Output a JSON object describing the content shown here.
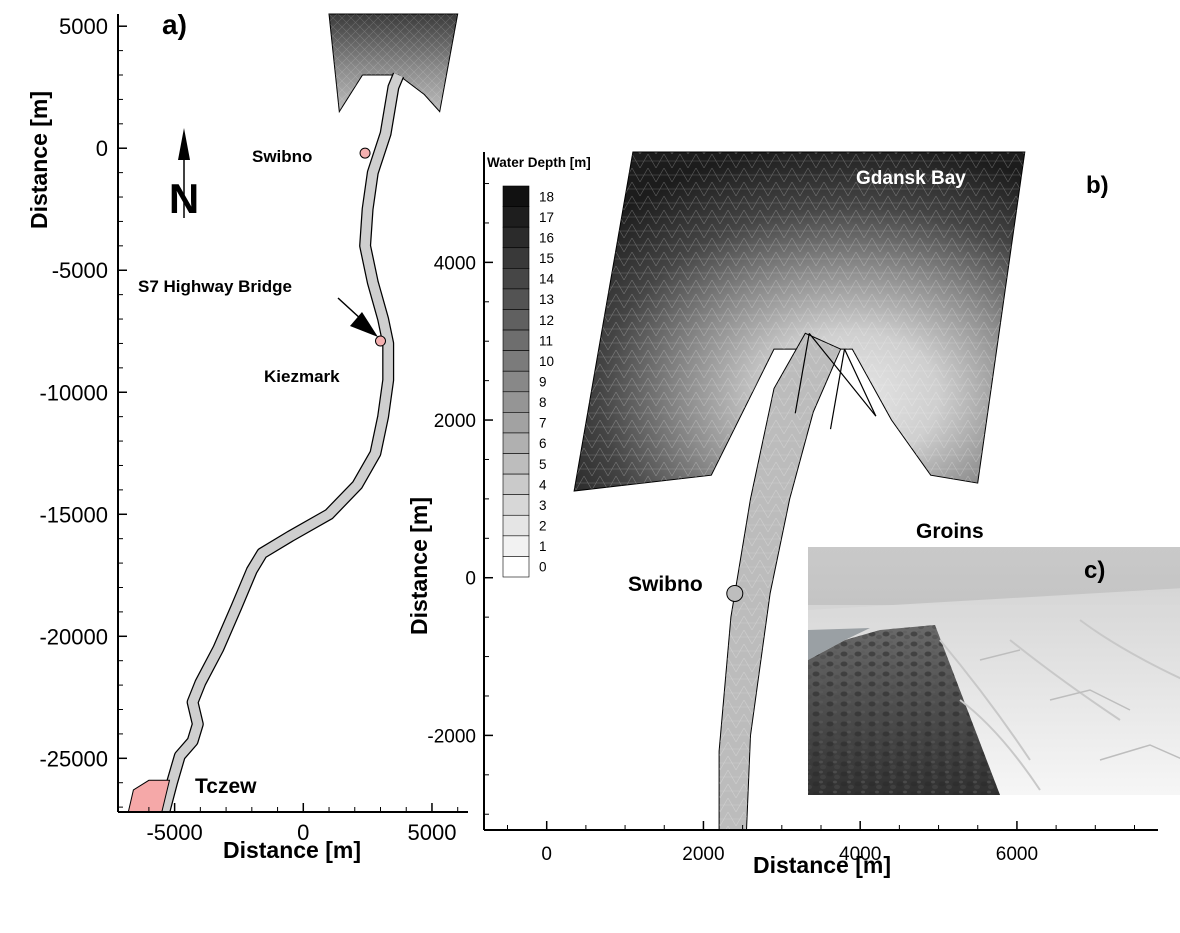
{
  "chart_data": [
    {
      "panel": "a)",
      "type": "map",
      "xlabel": "Distance [m]",
      "ylabel": "Distance [m]",
      "xlim": [
        -7200,
        6400
      ],
      "ylim": [
        -27200,
        5500
      ],
      "x_ticks": [
        -5000,
        0,
        5000
      ],
      "x_tick_labels": [
        "-5000",
        "0",
        "5000"
      ],
      "y_ticks": [
        5000,
        0,
        -5000,
        -10000,
        -15000,
        -20000,
        -25000
      ],
      "y_tick_labels": [
        "5000",
        "0",
        "-5000",
        "-10000",
        "-15000",
        "-20000",
        "-25000"
      ],
      "north_label": "N",
      "river_centerline": [
        [
          -5400,
          -27200
        ],
        [
          -5100,
          -26000
        ],
        [
          -4800,
          -24900
        ],
        [
          -4300,
          -24300
        ],
        [
          -4100,
          -23600
        ],
        [
          -4300,
          -22700
        ],
        [
          -4000,
          -21900
        ],
        [
          -3300,
          -20500
        ],
        [
          -2600,
          -18800
        ],
        [
          -2000,
          -17300
        ],
        [
          -1600,
          -16600
        ],
        [
          -500,
          -15900
        ],
        [
          1000,
          -15000
        ],
        [
          2100,
          -13800
        ],
        [
          2800,
          -12500
        ],
        [
          3100,
          -11000
        ],
        [
          3300,
          -9500
        ],
        [
          3300,
          -8000
        ],
        [
          3100,
          -7000
        ],
        [
          2700,
          -5500
        ],
        [
          2400,
          -4000
        ],
        [
          2500,
          -2500
        ],
        [
          2700,
          -1000
        ],
        [
          3200,
          600
        ],
        [
          3500,
          2500
        ],
        [
          3700,
          3000
        ]
      ],
      "bay_polygon": [
        [
          1000,
          5500
        ],
        [
          6000,
          5500
        ],
        [
          5300,
          1500
        ],
        [
          4700,
          2200
        ],
        [
          3700,
          3000
        ],
        [
          2300,
          3000
        ],
        [
          1400,
          1500
        ]
      ],
      "locations": [
        {
          "name": "Swibno",
          "x": 2400,
          "y": -200
        },
        {
          "name": "Kiezmark",
          "x": 3000,
          "y": -7900
        },
        {
          "name": "S7 Highway Bridge",
          "x": 3100,
          "y": -7300
        },
        {
          "name": "Tczew",
          "x": -6100,
          "y": -26700
        }
      ],
      "tczew_polygon": [
        [
          -6800,
          -27200
        ],
        [
          -6600,
          -26300
        ],
        [
          -6000,
          -25900
        ],
        [
          -5200,
          -25900
        ],
        [
          -5500,
          -27200
        ]
      ]
    },
    {
      "panel": "b)",
      "type": "contour",
      "title": "Gdansk Bay",
      "xlabel": "Distance [m]",
      "ylabel": "Distance [m]",
      "xlim": [
        -800,
        7800
      ],
      "ylim": [
        -3200,
        5400
      ],
      "x_ticks": [
        0,
        2000,
        4000,
        6000
      ],
      "x_tick_labels": [
        "0",
        "2000",
        "4000",
        "6000"
      ],
      "y_ticks": [
        4000,
        2000,
        0,
        -2000
      ],
      "y_tick_labels": [
        "4000",
        "2000",
        "0",
        "-2000"
      ],
      "colorbar_title": "Water Depth [m]",
      "colorbar_levels": [
        18,
        17,
        16,
        15,
        14,
        13,
        12,
        11,
        10,
        9,
        8,
        7,
        6,
        5,
        4,
        3,
        2,
        1,
        0
      ],
      "colorbar_labels": [
        "18",
        "17",
        "16",
        "15",
        "14",
        "13",
        "12",
        "11",
        "10",
        "9",
        "8",
        "7",
        "6",
        "5",
        "4",
        "3",
        "2",
        "1",
        "0"
      ],
      "groin_label": "Groins",
      "groins": [
        {
          "from": [
            3350,
            3100
          ],
          "to": [
            4200,
            2050
          ]
        },
        {
          "from": [
            3800,
            2900
          ],
          "to": [
            4200,
            2050
          ]
        }
      ],
      "swibno": {
        "name": "Swibno",
        "x": 2400,
        "y": -200
      },
      "bay_outline": [
        [
          1100,
          5400
        ],
        [
          6100,
          5400
        ],
        [
          5500,
          1200
        ],
        [
          4900,
          1300
        ],
        [
          4400,
          2000
        ],
        [
          3900,
          2900
        ],
        [
          2900,
          2900
        ],
        [
          2100,
          1300
        ],
        [
          350,
          1100
        ]
      ],
      "channel_left": [
        [
          2200,
          -3200
        ],
        [
          2200,
          -2200
        ],
        [
          2350,
          -500
        ],
        [
          2600,
          1000
        ],
        [
          2900,
          2400
        ],
        [
          3300,
          3100
        ]
      ],
      "channel_right": [
        [
          2550,
          -3200
        ],
        [
          2600,
          -2000
        ],
        [
          2850,
          -200
        ],
        [
          3100,
          1000
        ],
        [
          3400,
          2100
        ],
        [
          3750,
          2900
        ]
      ]
    },
    {
      "panel": "c)",
      "type": "photo"
    }
  ],
  "colors": {
    "river_fill": "#cfcfcf",
    "tczew_fill": "#f5a8a8",
    "location_marker": "#f4b0b0",
    "swibno_marker_b": "#bdbdbd",
    "depth_deep": "#111111",
    "depth_shallow": "#ffffff"
  }
}
